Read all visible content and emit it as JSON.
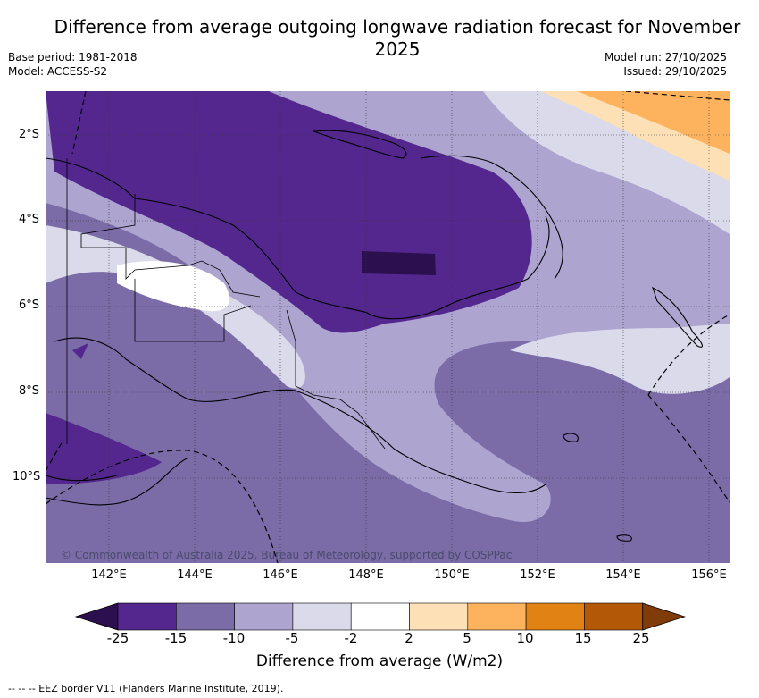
{
  "title": "Difference from average outgoing longwave radiation forecast for November 2025",
  "meta": {
    "base_period": "Base period: 1981-2018",
    "model": "Model: ACCESS-S2",
    "model_run": "Model run: 27/10/2025",
    "issued": "Issued: 29/10/2025"
  },
  "map": {
    "lat_labels": [
      "2°S",
      "4°S",
      "6°S",
      "8°S",
      "10°S"
    ],
    "lon_labels": [
      "142°E",
      "144°E",
      "146°E",
      "148°E",
      "150°E",
      "152°E",
      "154°E",
      "156°E"
    ],
    "copyright": "© Commonwealth of Australia 2025, Bureau of Meteorology, supported by COSPPac"
  },
  "colorbar": {
    "title": "Difference from average (W/m2)",
    "ticks": [
      "-25",
      "-15",
      "-10",
      "-5",
      "-2",
      "2",
      "5",
      "10",
      "15",
      "25"
    ],
    "colors": [
      "#2c0f4e",
      "#54278f",
      "#7b6ca8",
      "#ada4d0",
      "#dadaeb",
      "#ffffff",
      "#fde0b6",
      "#fdb35e",
      "#e08214",
      "#b35806",
      "#7f3b08"
    ]
  },
  "footer": "--  --  -- EEZ border V11 (Flanders Marine Institute, 2019)."
}
